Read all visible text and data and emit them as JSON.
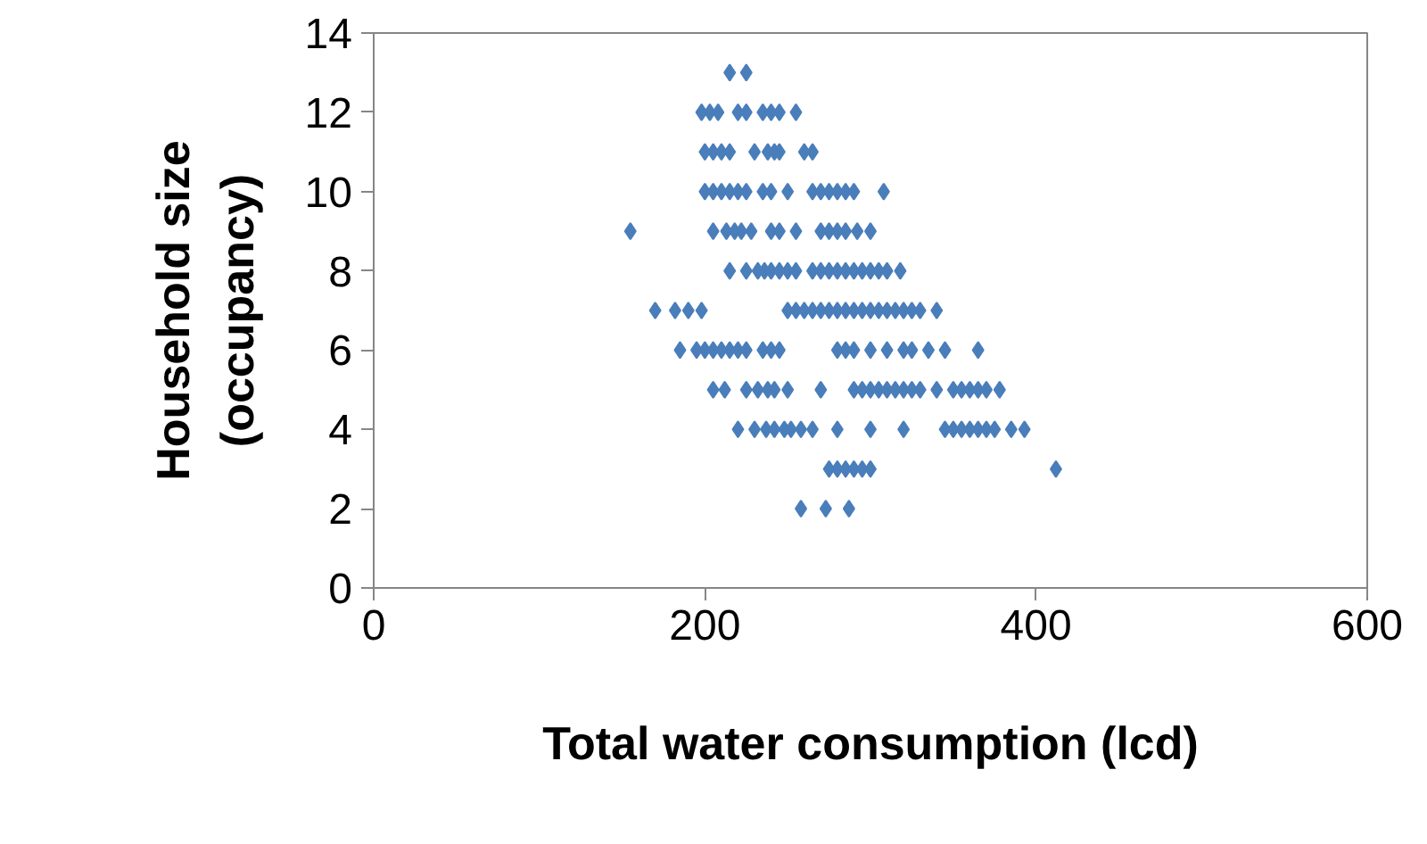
{
  "chart_data": {
    "type": "scatter",
    "xlabel": "Total water consumption (lcd)",
    "ylabel": "Household size\n(occupancy)",
    "xlim": [
      0,
      600
    ],
    "xticks": [
      0,
      200,
      400,
      600
    ],
    "ylim": [
      0,
      14
    ],
    "yticks": [
      0,
      2,
      4,
      6,
      8,
      10,
      12,
      14
    ],
    "grid": false,
    "marker": "diamond",
    "series": [
      {
        "color": "#4a7ebb",
        "x": [
          215,
          225,
          198,
          203,
          208,
          220,
          225,
          235,
          240,
          245,
          255,
          200,
          205,
          210,
          215,
          230,
          238,
          242,
          245,
          260,
          265,
          200,
          205,
          210,
          215,
          220,
          225,
          235,
          240,
          250,
          265,
          270,
          275,
          280,
          285,
          290,
          308,
          155,
          205,
          213,
          218,
          222,
          228,
          240,
          245,
          255,
          270,
          275,
          280,
          285,
          292,
          300,
          215,
          225,
          232,
          236,
          240,
          245,
          250,
          255,
          265,
          270,
          275,
          280,
          285,
          290,
          295,
          300,
          305,
          310,
          318,
          170,
          182,
          190,
          198,
          250,
          255,
          260,
          265,
          270,
          275,
          280,
          285,
          290,
          295,
          300,
          305,
          310,
          315,
          320,
          325,
          330,
          340,
          185,
          195,
          200,
          205,
          210,
          215,
          220,
          225,
          235,
          240,
          245,
          280,
          285,
          290,
          300,
          310,
          320,
          325,
          335,
          345,
          365,
          205,
          212,
          225,
          232,
          238,
          242,
          250,
          270,
          290,
          295,
          300,
          305,
          310,
          315,
          320,
          325,
          330,
          340,
          350,
          355,
          360,
          365,
          370,
          378,
          220,
          230,
          237,
          242,
          248,
          252,
          258,
          265,
          280,
          300,
          320,
          345,
          350,
          355,
          360,
          365,
          370,
          375,
          385,
          393,
          275,
          280,
          285,
          290,
          295,
          300,
          412,
          258,
          273,
          287
        ],
        "values": [
          13,
          13,
          12,
          12,
          12,
          12,
          12,
          12,
          12,
          12,
          12,
          11,
          11,
          11,
          11,
          11,
          11,
          11,
          11,
          11,
          11,
          10,
          10,
          10,
          10,
          10,
          10,
          10,
          10,
          10,
          10,
          10,
          10,
          10,
          10,
          10,
          10,
          9,
          9,
          9,
          9,
          9,
          9,
          9,
          9,
          9,
          9,
          9,
          9,
          9,
          9,
          9,
          8,
          8,
          8,
          8,
          8,
          8,
          8,
          8,
          8,
          8,
          8,
          8,
          8,
          8,
          8,
          8,
          8,
          8,
          8,
          7,
          7,
          7,
          7,
          7,
          7,
          7,
          7,
          7,
          7,
          7,
          7,
          7,
          7,
          7,
          7,
          7,
          7,
          7,
          7,
          7,
          7,
          6,
          6,
          6,
          6,
          6,
          6,
          6,
          6,
          6,
          6,
          6,
          6,
          6,
          6,
          6,
          6,
          6,
          6,
          6,
          6,
          6,
          5,
          5,
          5,
          5,
          5,
          5,
          5,
          5,
          5,
          5,
          5,
          5,
          5,
          5,
          5,
          5,
          5,
          5,
          5,
          5,
          5,
          5,
          5,
          5,
          4,
          4,
          4,
          4,
          4,
          4,
          4,
          4,
          4,
          4,
          4,
          4,
          4,
          4,
          4,
          4,
          4,
          4,
          4,
          4,
          3,
          3,
          3,
          3,
          3,
          3,
          3,
          2,
          2,
          2
        ]
      }
    ]
  }
}
